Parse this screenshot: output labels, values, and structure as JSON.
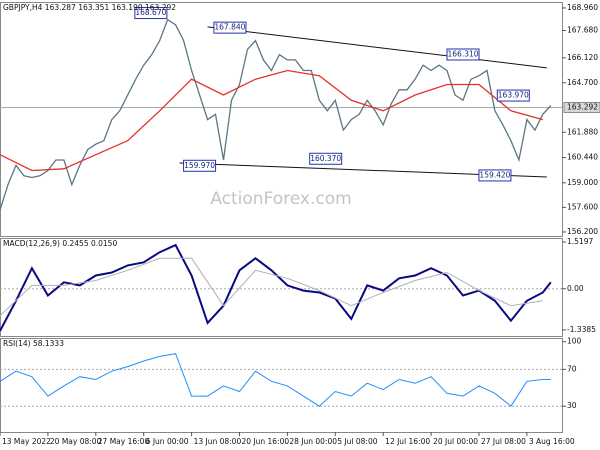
{
  "chart_data": [
    {
      "type": "line",
      "title": "GBPJPY,H4  163.287 163.351 163.190 163.292",
      "watermark": "ActionForex.com",
      "xlim": [
        0,
        70.4
      ],
      "ylim": [
        155.97,
        169.3
      ],
      "yticks": [
        {
          "value": 168.96,
          "label": "168.960"
        },
        {
          "value": 167.68,
          "label": "167.680"
        },
        {
          "value": 166.12,
          "label": "166.120"
        },
        {
          "value": 164.7,
          "label": "164.700"
        },
        {
          "value": 161.88,
          "label": "161.880"
        },
        {
          "value": 160.44,
          "label": "160.440"
        },
        {
          "value": 159,
          "label": "159.000"
        },
        {
          "value": 157.6,
          "label": "157.600"
        },
        {
          "value": 156.2,
          "label": "156.200"
        }
      ],
      "current_value": 163.292,
      "series": [
        {
          "name": "GBPJPY",
          "color": "#5a7684",
          "x": [
            0,
            1,
            2,
            3,
            4,
            5,
            6,
            7,
            8,
            9,
            10,
            11,
            12,
            13,
            14,
            15,
            16,
            17,
            18,
            19,
            20,
            21,
            22,
            23,
            24,
            25,
            26,
            27,
            28,
            29,
            30,
            31,
            32,
            33,
            34,
            35,
            36,
            37,
            38,
            39,
            40,
            41,
            42,
            43,
            44,
            45,
            46,
            47,
            48,
            49,
            50,
            51,
            52,
            53,
            54,
            55,
            56,
            57,
            58,
            59,
            60,
            61,
            62,
            63,
            64,
            65,
            66,
            67,
            68,
            69
          ],
          "values": [
            157.45,
            158.9,
            160.0,
            159.4,
            159.3,
            159.4,
            159.7,
            160.3,
            160.3,
            158.9,
            160.0,
            160.9,
            161.2,
            161.4,
            162.6,
            163.1,
            164.0,
            164.9,
            165.7,
            166.3,
            167.1,
            168.3,
            168.0,
            167.1,
            165.4,
            164.0,
            162.6,
            162.9,
            160.3,
            163.7,
            164.6,
            166.6,
            167.1,
            166.0,
            165.4,
            166.3,
            166.0,
            166.0,
            165.4,
            165.4,
            163.7,
            163.1,
            163.7,
            162.0,
            162.6,
            162.9,
            163.7,
            163.1,
            162.3,
            163.5,
            164.3,
            164.3,
            164.9,
            165.7,
            165.4,
            165.7,
            165.4,
            164.0,
            163.7,
            164.9,
            165.1,
            165.4,
            163.1,
            162.3,
            161.4,
            160.3,
            162.6,
            162.0,
            162.9,
            163.4
          ]
        },
        {
          "name": "MA",
          "color": "#e8302a",
          "x": [
            0,
            4,
            8,
            12,
            16,
            20,
            24,
            28,
            32,
            36,
            40,
            44,
            48,
            52,
            56,
            60,
            64,
            68
          ],
          "values": [
            160.6,
            159.7,
            159.8,
            160.6,
            161.4,
            163.1,
            164.9,
            164.0,
            164.9,
            165.4,
            165.1,
            163.7,
            163.1,
            164.0,
            164.6,
            164.6,
            163.1,
            162.6
          ]
        }
      ],
      "trendlines": [
        {
          "color": "#111111",
          "x": [
            26,
            68.5
          ],
          "values": [
            167.88,
            165.55
          ]
        },
        {
          "color": "#111111",
          "x": [
            22.5,
            68.5
          ],
          "values": [
            160.13,
            159.33
          ]
        }
      ],
      "annotations": [
        {
          "text": "168.670",
          "x": 18.9,
          "value": 168.67
        },
        {
          "text": "167.840",
          "x": 28.8,
          "value": 167.84
        },
        {
          "text": "166.310",
          "x": 58,
          "value": 166.31
        },
        {
          "text": "163.970",
          "x": 64.3,
          "value": 163.97
        },
        {
          "text": "159.970",
          "x": 25,
          "value": 159.97
        },
        {
          "text": "160.370",
          "x": 40.8,
          "value": 160.37
        },
        {
          "text": "159.420",
          "x": 62,
          "value": 159.42
        }
      ]
    },
    {
      "type": "line",
      "title": "MACD(12,26,9) 0.2455 0.0150",
      "xlim": [
        0,
        70.4
      ],
      "ylim": [
        -1.536,
        1.651
      ],
      "yticks": [
        1.5197,
        {
          "value": 0,
          "label": "0.00"
        },
        -1.3385
      ],
      "levels": [
        0
      ],
      "series": [
        {
          "name": "MACD",
          "color": "#0a0a80",
          "width": 2,
          "x": [
            0,
            2,
            4,
            6,
            8,
            10,
            12,
            14,
            16,
            18,
            20,
            22,
            24,
            26,
            28,
            30,
            32,
            34,
            36,
            38,
            40,
            42,
            44,
            46,
            48,
            50,
            52,
            54,
            56,
            58,
            60,
            62,
            64,
            66,
            68,
            69
          ],
          "values": [
            -1.37,
            -0.39,
            0.67,
            -0.22,
            0.21,
            0.11,
            0.43,
            0.53,
            0.76,
            0.86,
            1.19,
            1.42,
            0.43,
            -1.11,
            -0.55,
            0.6,
            0.99,
            0.6,
            0.11,
            -0.06,
            -0.12,
            -0.32,
            -0.98,
            0.11,
            -0.06,
            0.34,
            0.43,
            0.67,
            0.43,
            -0.22,
            -0.06,
            -0.39,
            -1.04,
            -0.39,
            -0.12,
            0.21
          ]
        },
        {
          "name": "Signal",
          "color": "#b0b0b0",
          "width": 1,
          "x": [
            0,
            4,
            8,
            12,
            16,
            20,
            24,
            28,
            32,
            36,
            40,
            44,
            48,
            52,
            56,
            60,
            64,
            68
          ],
          "values": [
            -0.88,
            0.11,
            0.11,
            0.27,
            0.6,
            0.99,
            0.99,
            -0.55,
            0.6,
            0.34,
            -0.06,
            -0.55,
            -0.12,
            0.27,
            0.53,
            -0.06,
            -0.55,
            -0.39
          ]
        }
      ]
    },
    {
      "type": "line",
      "title": "RSI(14) 58.1333",
      "xlim": [
        0,
        70.4
      ],
      "ylim": [
        2,
        104
      ],
      "yticks": [
        100,
        70,
        30
      ],
      "levels": [
        70,
        30
      ],
      "xticks": [
        {
          "value": 0,
          "label": "13 May 2022"
        },
        {
          "value": 6,
          "label": "20 May 08:00"
        },
        {
          "value": 12,
          "label": "27 May 16:00"
        },
        {
          "value": 18,
          "label": "6 Jun 00:00"
        },
        {
          "value": 24,
          "label": "13 Jun 08:00"
        },
        {
          "value": 30,
          "label": "20 Jun 16:00"
        },
        {
          "value": 36,
          "label": "28 Jun 00:00"
        },
        {
          "value": 42,
          "label": "5 Jul 08:00"
        },
        {
          "value": 48,
          "label": "12 Jul 16:00"
        },
        {
          "value": 54,
          "label": "20 Jul 00:00"
        },
        {
          "value": 60,
          "label": "27 Jul 08:00"
        },
        {
          "value": 66,
          "label": "3 Aug 16:00"
        }
      ],
      "series": [
        {
          "name": "RSI",
          "color": "#1e90ff",
          "width": 1,
          "x": [
            0,
            2,
            4,
            6,
            8,
            10,
            12,
            14,
            16,
            18,
            20,
            22,
            24,
            26,
            28,
            30,
            32,
            34,
            36,
            38,
            40,
            42,
            44,
            46,
            48,
            50,
            52,
            54,
            56,
            58,
            60,
            62,
            64,
            66,
            68,
            69
          ],
          "values": [
            57,
            68,
            62,
            41,
            52,
            62,
            59,
            68,
            73,
            79,
            84,
            87,
            41,
            41,
            52,
            46,
            68,
            57,
            52,
            41,
            30,
            46,
            41,
            55,
            48,
            59,
            55,
            62,
            44,
            41,
            52,
            44,
            30,
            57,
            59,
            59
          ]
        }
      ]
    }
  ]
}
